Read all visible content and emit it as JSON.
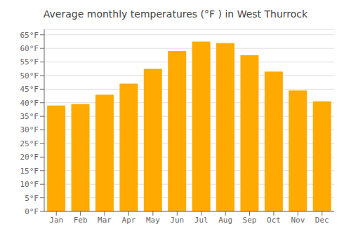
{
  "chart_data": {
    "type": "bar",
    "title": "Average monthly temperatures (°F ) in West Thurrock",
    "categories": [
      "Jan",
      "Feb",
      "Mar",
      "Apr",
      "May",
      "Jun",
      "Jul",
      "Aug",
      "Sep",
      "Oct",
      "Nov",
      "Dec"
    ],
    "values": [
      39,
      39.5,
      43,
      47,
      52.5,
      59,
      62.5,
      62,
      57.5,
      51.5,
      44.5,
      40.5
    ],
    "color": "#FFAA00",
    "ylim": [
      0,
      67
    ],
    "yticks": [
      {
        "value": 0,
        "label": "0°F"
      },
      {
        "value": 5,
        "label": "5°F"
      },
      {
        "value": 10,
        "label": "10°F"
      },
      {
        "value": 15,
        "label": "15°F"
      },
      {
        "value": 20,
        "label": "20°F"
      },
      {
        "value": 25,
        "label": "25°F"
      },
      {
        "value": 30,
        "label": "30°F"
      },
      {
        "value": 35,
        "label": "35°F"
      },
      {
        "value": 40,
        "label": "40°F"
      },
      {
        "value": 45,
        "label": "45°F"
      },
      {
        "value": 50,
        "label": "50°F"
      },
      {
        "value": 55,
        "label": "55°F"
      },
      {
        "value": 60,
        "label": "60°F"
      },
      {
        "value": 65,
        "label": "65°F"
      }
    ],
    "grid": true
  }
}
